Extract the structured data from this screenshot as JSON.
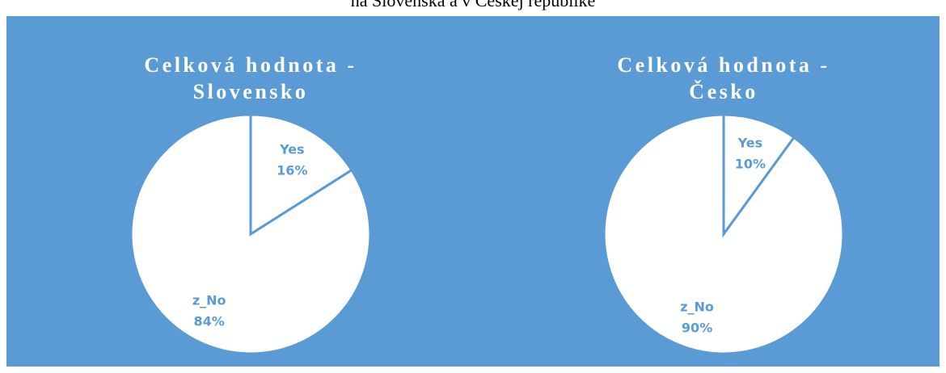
{
  "heading": "na Slovenska a v Českej republike",
  "chart_data": [
    {
      "type": "pie",
      "title": "Celková hodnota - Slovensko",
      "categories": [
        "Yes",
        "z_No"
      ],
      "values": [
        16,
        84
      ],
      "value_labels": [
        "16%",
        "84%"
      ],
      "color": "#ffffff",
      "background": "#5b9bd5"
    },
    {
      "type": "pie",
      "title": "Celková hodnota - Česko",
      "categories": [
        "Yes",
        "z_No"
      ],
      "values": [
        10,
        90
      ],
      "value_labels": [
        "10%",
        "90%"
      ],
      "color": "#ffffff",
      "background": "#5b9bd5"
    }
  ]
}
